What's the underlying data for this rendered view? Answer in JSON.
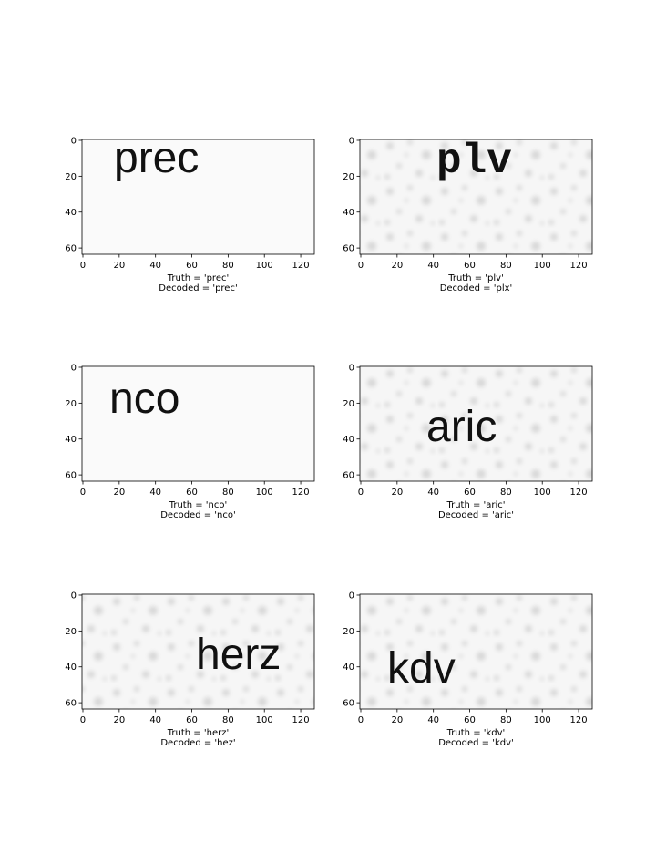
{
  "chart_data": [
    {
      "type": "image",
      "image_text": "prec",
      "xlabel": [
        "Truth = 'prec'",
        "Decoded = 'prec'"
      ],
      "xlim": [
        -0.5,
        127.5
      ],
      "ylim": [
        63.5,
        -0.5
      ],
      "xticks": [
        0,
        20,
        40,
        60,
        80,
        100,
        120
      ],
      "yticks": [
        0,
        20,
        40,
        60
      ]
    },
    {
      "type": "image",
      "image_text": "plv",
      "xlabel": [
        "Truth = 'plv'",
        "Decoded = 'plx'"
      ],
      "xlim": [
        -0.5,
        127.5
      ],
      "ylim": [
        63.5,
        -0.5
      ],
      "xticks": [
        0,
        20,
        40,
        60,
        80,
        100,
        120
      ],
      "yticks": [
        0,
        20,
        40,
        60
      ]
    },
    {
      "type": "image",
      "image_text": "nco",
      "xlabel": [
        "Truth = 'nco'",
        "Decoded = 'nco'"
      ],
      "xlim": [
        -0.5,
        127.5
      ],
      "ylim": [
        63.5,
        -0.5
      ],
      "xticks": [
        0,
        20,
        40,
        60,
        80,
        100,
        120
      ],
      "yticks": [
        0,
        20,
        40,
        60
      ]
    },
    {
      "type": "image",
      "image_text": "aric",
      "xlabel": [
        "Truth = 'aric'",
        "Decoded = 'aric'"
      ],
      "xlim": [
        -0.5,
        127.5
      ],
      "ylim": [
        63.5,
        -0.5
      ],
      "xticks": [
        0,
        20,
        40,
        60,
        80,
        100,
        120
      ],
      "yticks": [
        0,
        20,
        40,
        60
      ]
    },
    {
      "type": "image",
      "image_text": "herz",
      "xlabel": [
        "Truth = 'herz'",
        "Decoded = 'hez'"
      ],
      "xlim": [
        -0.5,
        127.5
      ],
      "ylim": [
        63.5,
        -0.5
      ],
      "xticks": [
        0,
        20,
        40,
        60,
        80,
        100,
        120
      ],
      "yticks": [
        0,
        20,
        40,
        60
      ]
    },
    {
      "type": "image",
      "image_text": "kdv",
      "xlabel": [
        "Truth = 'kdv'",
        "Decoded = 'kdv'"
      ],
      "xlim": [
        -0.5,
        127.5
      ],
      "ylim": [
        63.5,
        -0.5
      ],
      "xticks": [
        0,
        20,
        40,
        60,
        80,
        100,
        120
      ],
      "yticks": [
        0,
        20,
        40,
        60
      ]
    }
  ]
}
